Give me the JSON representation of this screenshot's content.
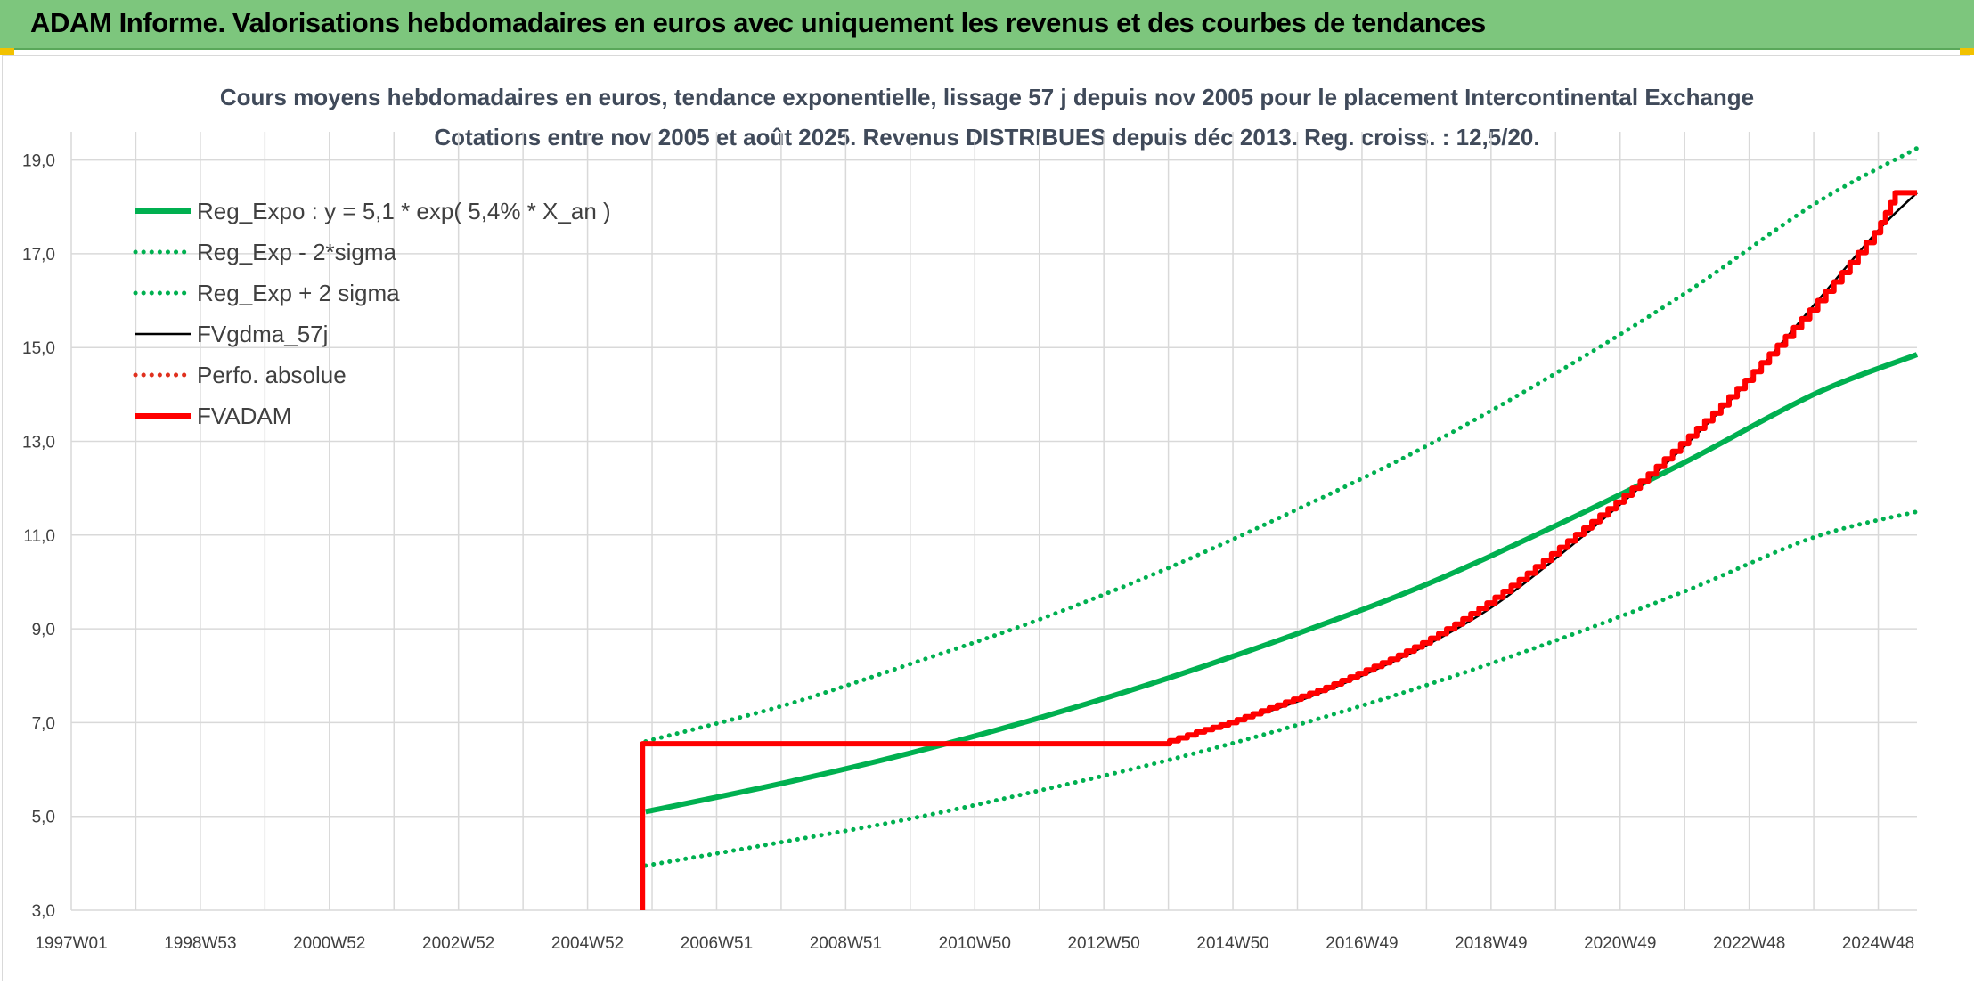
{
  "banner": {
    "title": "ADAM Informe. Valorisations hebdomadaires en euros avec uniquement les revenus et des courbes de tendances"
  },
  "colors": {
    "banner_bg": "#7dc67d",
    "trend_green": "#00b050",
    "adam_red": "#ff0000",
    "perfo_red": "#e0301e",
    "fv_black": "#000000",
    "grid": "#d9d9d9"
  },
  "chart_data": {
    "type": "line",
    "title": "Cours moyens hebdomadaires en euros, tendance exponentielle, lissage 57 j depuis nov 2005 pour le placement Intercontinental Exchange",
    "subtitle": "Cotations entre nov 2005 et août 2025. Revenus DISTRIBUES depuis déc 2013. Reg. croiss. : 12,5/20.",
    "x_tick_labels": [
      "1997W01",
      "1998W53",
      "2000W52",
      "2002W52",
      "2004W52",
      "2006W51",
      "2008W51",
      "2010W50",
      "2012W50",
      "2014W50",
      "2016W49",
      "2018W49",
      "2020W49",
      "2022W48",
      "2024W48"
    ],
    "x_tick_years": [
      1997.0,
      1999.0,
      2001.0,
      2003.0,
      2005.0,
      2007.0,
      2009.0,
      2011.0,
      2013.0,
      2015.0,
      2017.0,
      2019.0,
      2021.0,
      2023.0,
      2025.0
    ],
    "xlim": [
      1997.0,
      2025.6
    ],
    "ylim": [
      3.0,
      19.6
    ],
    "y_ticks": [
      3.0,
      5.0,
      7.0,
      9.0,
      11.0,
      13.0,
      15.0,
      17.0,
      19.0
    ],
    "y_tick_labels": [
      "3,0",
      "5,0",
      "7,0",
      "9,0",
      "11,0",
      "13,0",
      "15,0",
      "17,0",
      "19,0"
    ],
    "grid": true,
    "legend_position": "top-left",
    "series": [
      {
        "name": "Reg_Expo : y = 5,1 * exp( 5,4% *  X_an )",
        "style": "solid-thick",
        "color": "#00b050",
        "x": [
          2005.9,
          2008.0,
          2010.0,
          2012.0,
          2014.0,
          2016.0,
          2018.0,
          2020.0,
          2022.0,
          2024.0,
          2025.6
        ],
        "y": [
          5.1,
          5.7,
          6.35,
          7.1,
          7.95,
          8.9,
          9.95,
          11.2,
          12.55,
          14.0,
          14.85
        ]
      },
      {
        "name": "Reg_Exp - 2*sigma",
        "style": "dotted",
        "color": "#00b050",
        "x": [
          2005.9,
          2008.0,
          2010.0,
          2012.0,
          2014.0,
          2016.0,
          2018.0,
          2020.0,
          2022.0,
          2024.0,
          2025.6
        ],
        "y": [
          3.95,
          4.45,
          4.95,
          5.55,
          6.2,
          6.95,
          7.8,
          8.75,
          9.8,
          10.95,
          11.5
        ]
      },
      {
        "name": "Reg_Exp + 2 sigma",
        "style": "dotted",
        "color": "#00b050",
        "x": [
          2005.9,
          2008.0,
          2010.0,
          2012.0,
          2014.0,
          2016.0,
          2018.0,
          2020.0,
          2022.0,
          2024.0,
          2025.6
        ],
        "y": [
          6.6,
          7.35,
          8.25,
          9.2,
          10.3,
          11.55,
          12.9,
          14.45,
          16.15,
          18.05,
          19.25
        ]
      },
      {
        "name": "FVgdma_57j",
        "style": "solid",
        "color": "#000000",
        "x": [
          2014.0,
          2015.0,
          2016.0,
          2017.0,
          2018.0,
          2019.0,
          2020.0,
          2021.0,
          2022.0,
          2023.0,
          2024.0,
          2025.0,
          2025.6
        ],
        "y": [
          6.6,
          7.0,
          7.45,
          8.0,
          8.65,
          9.45,
          10.5,
          11.65,
          12.9,
          14.3,
          15.9,
          17.5,
          18.3
        ]
      },
      {
        "name": "Perfo. absolue",
        "style": "dotted",
        "color": "#e0301e",
        "x": [],
        "y": []
      },
      {
        "name": "FVADAM",
        "style": "solid-thick-step",
        "color": "#ff0000",
        "x": [
          2005.85,
          2005.85,
          2013.95,
          2014.5,
          2015.0,
          2015.5,
          2016.0,
          2016.5,
          2017.0,
          2017.5,
          2018.0,
          2018.5,
          2019.0,
          2019.5,
          2020.0,
          2020.5,
          2021.0,
          2021.5,
          2022.0,
          2022.5,
          2023.0,
          2023.5,
          2024.0,
          2024.5,
          2025.0,
          2025.3,
          2025.6
        ],
        "y": [
          3.0,
          6.55,
          6.55,
          6.8,
          7.0,
          7.25,
          7.5,
          7.75,
          8.05,
          8.35,
          8.7,
          9.1,
          9.55,
          10.05,
          10.6,
          11.15,
          11.7,
          12.3,
          12.95,
          13.6,
          14.3,
          15.05,
          15.8,
          16.6,
          17.45,
          18.3,
          18.3
        ]
      }
    ]
  }
}
